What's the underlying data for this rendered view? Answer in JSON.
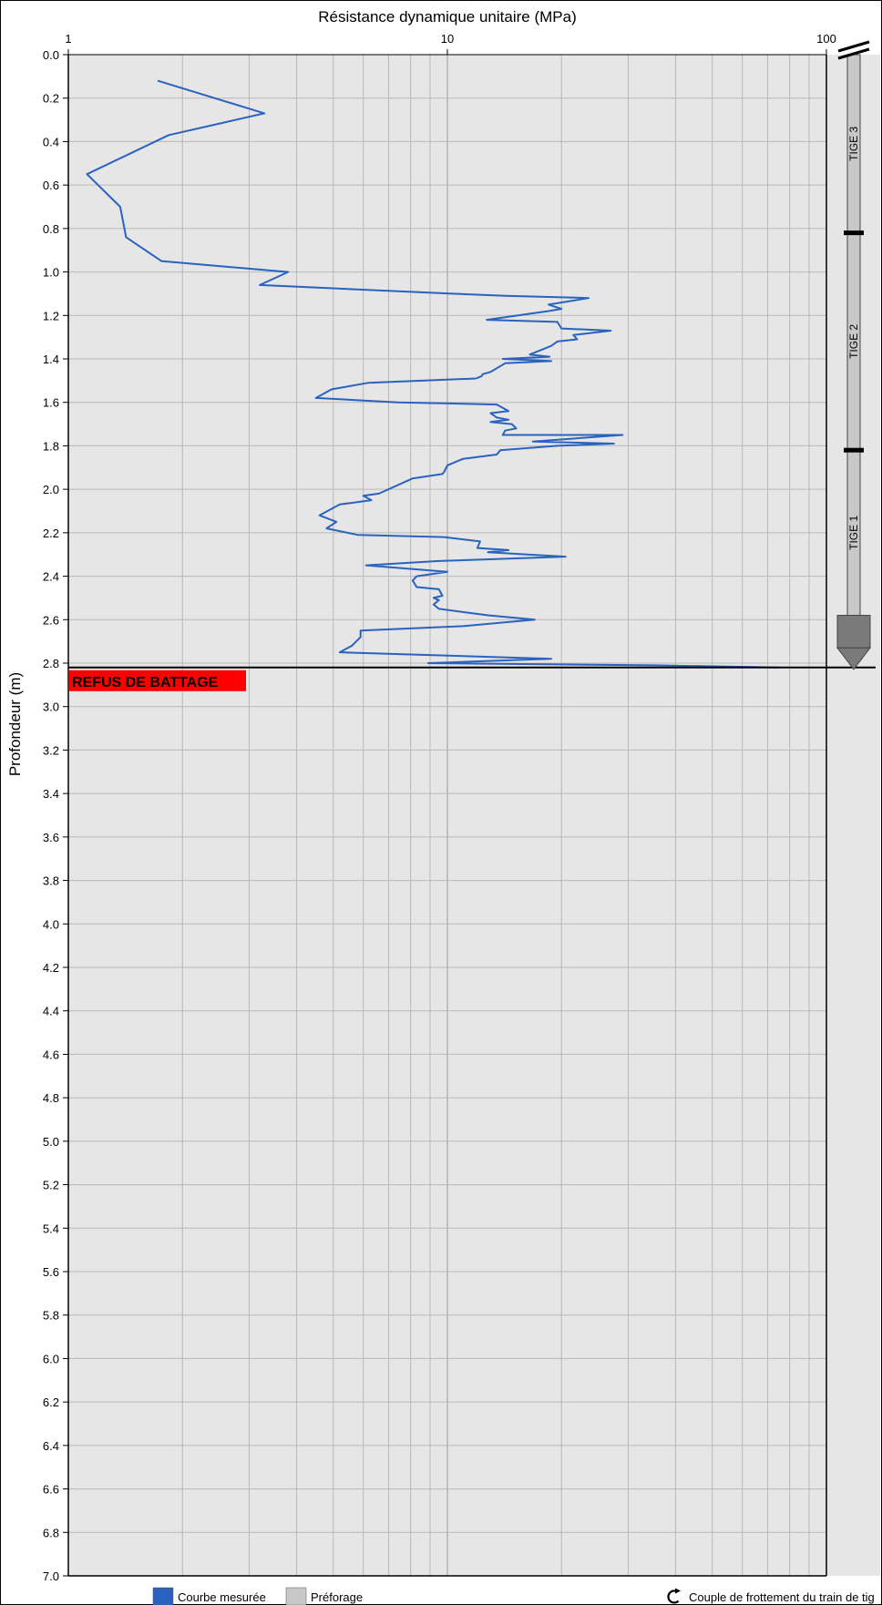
{
  "chart_data": {
    "type": "line",
    "xlabel": "Résistance dynamique unitaire (MPa)",
    "ylabel": "Profondeur (m)",
    "x_scale": "log",
    "xlim": [
      1,
      100
    ],
    "ylim": [
      0,
      7
    ],
    "y_inverted": true,
    "grid": true,
    "x_ticks": [
      "1",
      "10",
      "100"
    ],
    "y_ticks": [
      "0.0",
      "0.2",
      "0.4",
      "0.6",
      "0.8",
      "1.0",
      "1.2",
      "1.4",
      "1.6",
      "1.8",
      "2.0",
      "2.2",
      "2.4",
      "2.6",
      "2.8",
      "3.0",
      "3.2",
      "3.4",
      "3.6",
      "3.8",
      "4.0",
      "4.2",
      "4.4",
      "4.6",
      "4.8",
      "5.0",
      "5.2",
      "5.4",
      "5.6",
      "5.8",
      "6.0",
      "6.2",
      "6.4",
      "6.6",
      "6.8",
      "7.0"
    ],
    "series": [
      {
        "name": "Courbe mesurée",
        "color": "#2a62c0",
        "points": [
          [
            1.72,
            0.12
          ],
          [
            3.29,
            0.27
          ],
          [
            1.84,
            0.37
          ],
          [
            1.12,
            0.55
          ],
          [
            1.37,
            0.7
          ],
          [
            1.42,
            0.84
          ],
          [
            1.76,
            0.95
          ],
          [
            3.8,
            1.0
          ],
          [
            3.2,
            1.06
          ],
          [
            10.3,
            1.1
          ],
          [
            14.2,
            1.11
          ],
          [
            23.6,
            1.12
          ],
          [
            18.5,
            1.15
          ],
          [
            20.0,
            1.17
          ],
          [
            18.5,
            1.18
          ],
          [
            12.7,
            1.22
          ],
          [
            19.5,
            1.23
          ],
          [
            20.0,
            1.26
          ],
          [
            27.0,
            1.27
          ],
          [
            21.5,
            1.29
          ],
          [
            22.0,
            1.31
          ],
          [
            19.5,
            1.32
          ],
          [
            18.8,
            1.34
          ],
          [
            16.5,
            1.38
          ],
          [
            18.6,
            1.39
          ],
          [
            14.0,
            1.4
          ],
          [
            18.8,
            1.41
          ],
          [
            14.2,
            1.42
          ],
          [
            13.0,
            1.46
          ],
          [
            12.4,
            1.47
          ],
          [
            12.3,
            1.48
          ],
          [
            11.9,
            1.49
          ],
          [
            6.2,
            1.51
          ],
          [
            4.95,
            1.54
          ],
          [
            4.5,
            1.58
          ],
          [
            7.4,
            1.6
          ],
          [
            13.5,
            1.61
          ],
          [
            14.5,
            1.64
          ],
          [
            13.0,
            1.65
          ],
          [
            13.5,
            1.67
          ],
          [
            14.5,
            1.68
          ],
          [
            13.0,
            1.69
          ],
          [
            14.8,
            1.7
          ],
          [
            15.2,
            1.72
          ],
          [
            14.2,
            1.73
          ],
          [
            14.0,
            1.75
          ],
          [
            29.0,
            1.75
          ],
          [
            16.8,
            1.78
          ],
          [
            27.5,
            1.79
          ],
          [
            19.5,
            1.8
          ],
          [
            13.8,
            1.82
          ],
          [
            13.5,
            1.84
          ],
          [
            11.0,
            1.86
          ],
          [
            10.0,
            1.89
          ],
          [
            9.8,
            1.92
          ],
          [
            9.7,
            1.93
          ],
          [
            8.1,
            1.95
          ],
          [
            6.6,
            2.02
          ],
          [
            6.0,
            2.03
          ],
          [
            6.3,
            2.05
          ],
          [
            5.2,
            2.07
          ],
          [
            4.6,
            2.12
          ],
          [
            5.1,
            2.15
          ],
          [
            4.8,
            2.18
          ],
          [
            5.8,
            2.21
          ],
          [
            9.8,
            2.22
          ],
          [
            12.2,
            2.24
          ],
          [
            12.0,
            2.27
          ],
          [
            14.5,
            2.28
          ],
          [
            12.8,
            2.29
          ],
          [
            20.5,
            2.31
          ],
          [
            9.5,
            2.33
          ],
          [
            6.1,
            2.35
          ],
          [
            10.0,
            2.38
          ],
          [
            8.3,
            2.4
          ],
          [
            8.1,
            2.42
          ],
          [
            8.3,
            2.45
          ],
          [
            9.5,
            2.46
          ],
          [
            9.7,
            2.49
          ],
          [
            9.2,
            2.5
          ],
          [
            9.5,
            2.51
          ],
          [
            9.2,
            2.53
          ],
          [
            9.5,
            2.55
          ],
          [
            12.8,
            2.58
          ],
          [
            17.0,
            2.6
          ],
          [
            11.0,
            2.63
          ],
          [
            5.9,
            2.65
          ],
          [
            5.9,
            2.68
          ],
          [
            5.6,
            2.72
          ],
          [
            5.2,
            2.75
          ],
          [
            8.0,
            2.76
          ],
          [
            18.8,
            2.78
          ],
          [
            8.9,
            2.8
          ],
          [
            35.0,
            2.81
          ],
          [
            75.0,
            2.82
          ]
        ]
      }
    ],
    "annotations": {
      "refusal": {
        "depth": 2.82,
        "label": "REFUS DE BATTAGE",
        "color": "#ff0000"
      }
    },
    "rods": [
      {
        "label": "TIGE 3",
        "top": 0.0,
        "bottom": 0.82
      },
      {
        "label": "TIGE 2",
        "top": 0.82,
        "bottom": 1.82
      },
      {
        "label": "TIGE 1",
        "top": 1.82,
        "bottom": 2.58
      }
    ],
    "legend": {
      "placement": "bottom",
      "items": [
        {
          "label": "Courbe mesurée",
          "color": "#2a62c0"
        },
        {
          "label": "Préforage",
          "color": "#c8c8c8"
        },
        {
          "label": "Couple de frottement du train de tig",
          "icon": "rotation-arrow-icon"
        }
      ]
    },
    "colors": {
      "plot_bg": "#e6e6e6",
      "grid": "#b8b8b8",
      "curve": "#2a62c0",
      "refusal_bg": "#ff0000",
      "rod_fill": "#c8c8c8",
      "tip_fill": "#7a7a7a"
    }
  }
}
